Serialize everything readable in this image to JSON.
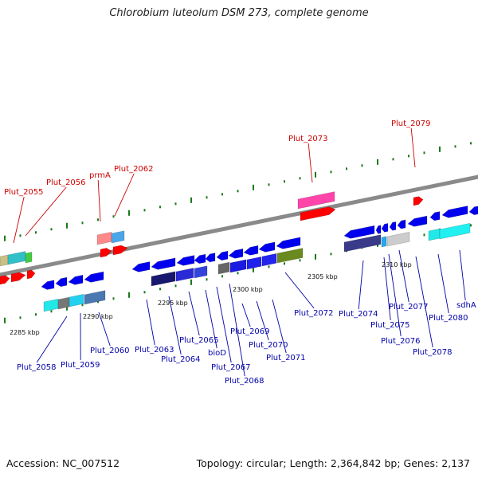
{
  "header": {
    "title": "Chlorobium luteolum DSM 273, complete genome"
  },
  "footer": {
    "accession": "Accession: NC_007512",
    "topology": "Topology: circular; Length: 2,364,842 bp; Genes: 2,137"
  },
  "colors": {
    "backbone": "#8a8a8a",
    "forward_gene": "#ff0000",
    "reverse_gene": "#0000ee",
    "top_label": "#cc0000",
    "bottom_label": "#0000aa",
    "tick_marks": "#1a7a1a"
  },
  "scale": {
    "ticks": [
      "2285 kbp",
      "2290 kbp",
      "2295 kbp",
      "2300 kbp",
      "2305 kbp",
      "2310 kbp"
    ]
  },
  "top_labels": [
    "Plut_2055",
    "Plut_2056",
    "prmA",
    "Plut_2062",
    "Plut_2073",
    "Plut_2079"
  ],
  "bottom_labels": [
    "Plut_2058",
    "Plut_2059",
    "Plut_2060",
    "Plut_2063",
    "Plut_2064",
    "Plut_2065",
    "bioD",
    "Plut_2067",
    "Plut_2068",
    "Plut_2069",
    "Plut_2070",
    "Plut_2071",
    "Plut_2072",
    "Plut_2074",
    "Plut_2075",
    "Plut_2076",
    "Plut_2077",
    "Plut_2078",
    "Plut_2080",
    "sdhA"
  ]
}
